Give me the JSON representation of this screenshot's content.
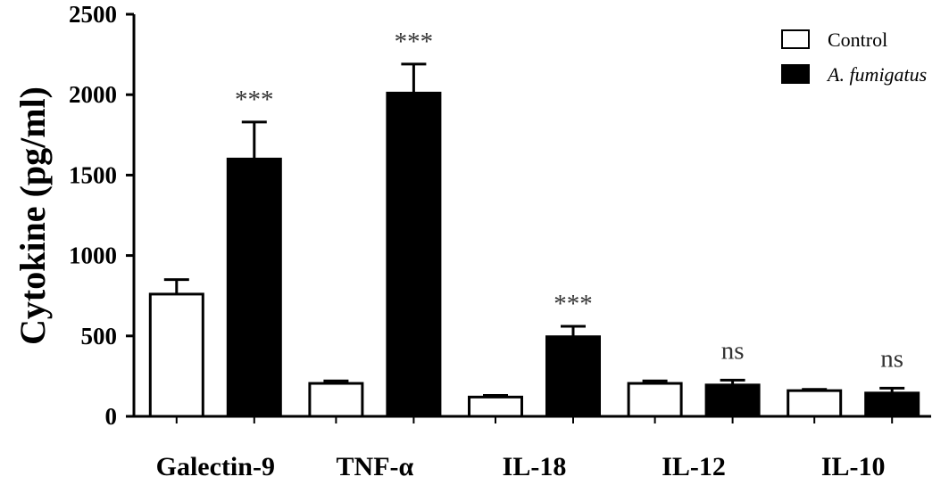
{
  "chart_data": {
    "type": "bar",
    "title": "",
    "xlabel": "",
    "ylabel": "Cytokine (pg/ml)",
    "ylim": [
      0,
      2500
    ],
    "yticks": [
      0,
      500,
      1000,
      1500,
      2000,
      2500
    ],
    "categories": [
      "Galectin-9",
      "TNF-α",
      "IL-18",
      "IL-12",
      "IL-10"
    ],
    "series": [
      {
        "name": "Control",
        "color": "#ffffff",
        "values": [
          760,
          205,
          120,
          205,
          160
        ],
        "errors": [
          90,
          15,
          10,
          15,
          8
        ]
      },
      {
        "name": "A. fumigatus",
        "italic": true,
        "color": "#000000",
        "values": [
          1600,
          2010,
          495,
          195,
          145
        ],
        "errors": [
          230,
          180,
          65,
          30,
          30
        ]
      }
    ],
    "annotations": [
      "***",
      "***",
      "***",
      "ns",
      "ns"
    ],
    "legend": {
      "position": "top-right"
    },
    "grid": false
  }
}
